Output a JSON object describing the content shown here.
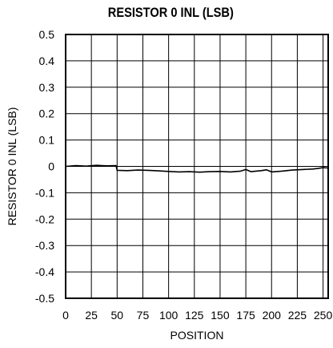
{
  "chart_data": {
    "type": "line",
    "title": "RESISTOR 0 INL (LSB)",
    "xlabel": "POSITION",
    "ylabel": "RESISTOR 0 INL (LSB)",
    "xlim": [
      0,
      255
    ],
    "ylim": [
      -0.5,
      0.5
    ],
    "x_ticks": [
      0,
      25,
      50,
      75,
      100,
      125,
      150,
      175,
      200,
      225,
      250
    ],
    "y_ticks": [
      0.5,
      0.4,
      0.3,
      0.2,
      0.1,
      0,
      -0.1,
      -0.2,
      -0.3,
      -0.4,
      -0.5
    ],
    "grid": true,
    "series": [
      {
        "color": "#000000",
        "x": [
          0,
          10,
          20,
          30,
          40,
          49,
          50,
          60,
          70,
          80,
          90,
          100,
          110,
          120,
          130,
          140,
          150,
          160,
          170,
          175,
          180,
          190,
          195,
          200,
          210,
          220,
          230,
          240,
          245,
          250,
          255
        ],
        "y": [
          0.0,
          0.003,
          0.001,
          0.004,
          0.002,
          0.003,
          -0.015,
          -0.016,
          -0.014,
          -0.015,
          -0.017,
          -0.019,
          -0.021,
          -0.02,
          -0.022,
          -0.02,
          -0.019,
          -0.021,
          -0.018,
          -0.012,
          -0.02,
          -0.016,
          -0.013,
          -0.021,
          -0.018,
          -0.014,
          -0.012,
          -0.01,
          -0.008,
          -0.005,
          -0.006
        ]
      }
    ]
  }
}
